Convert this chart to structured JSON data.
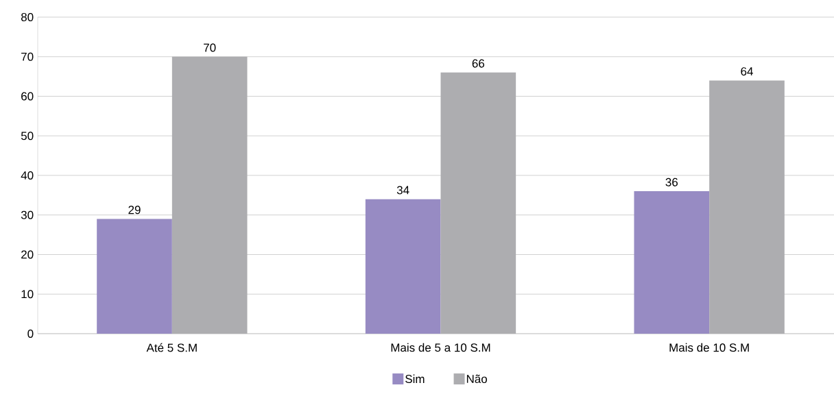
{
  "chart_data": {
    "type": "bar",
    "categories": [
      "Até 5 S.M",
      "Mais de 5 a 10 S.M",
      "Mais de 10 S.M"
    ],
    "series": [
      {
        "name": "Sim",
        "color": "#978bc3",
        "values": [
          29,
          34,
          36
        ]
      },
      {
        "name": "Não",
        "color": "#adadb0",
        "values": [
          70,
          66,
          64
        ]
      }
    ],
    "ylim": [
      0,
      80
    ],
    "yticks": [
      0,
      10,
      20,
      30,
      40,
      50,
      60,
      70,
      80
    ],
    "grid": "y",
    "legend": "bottom",
    "data_labels": true
  }
}
